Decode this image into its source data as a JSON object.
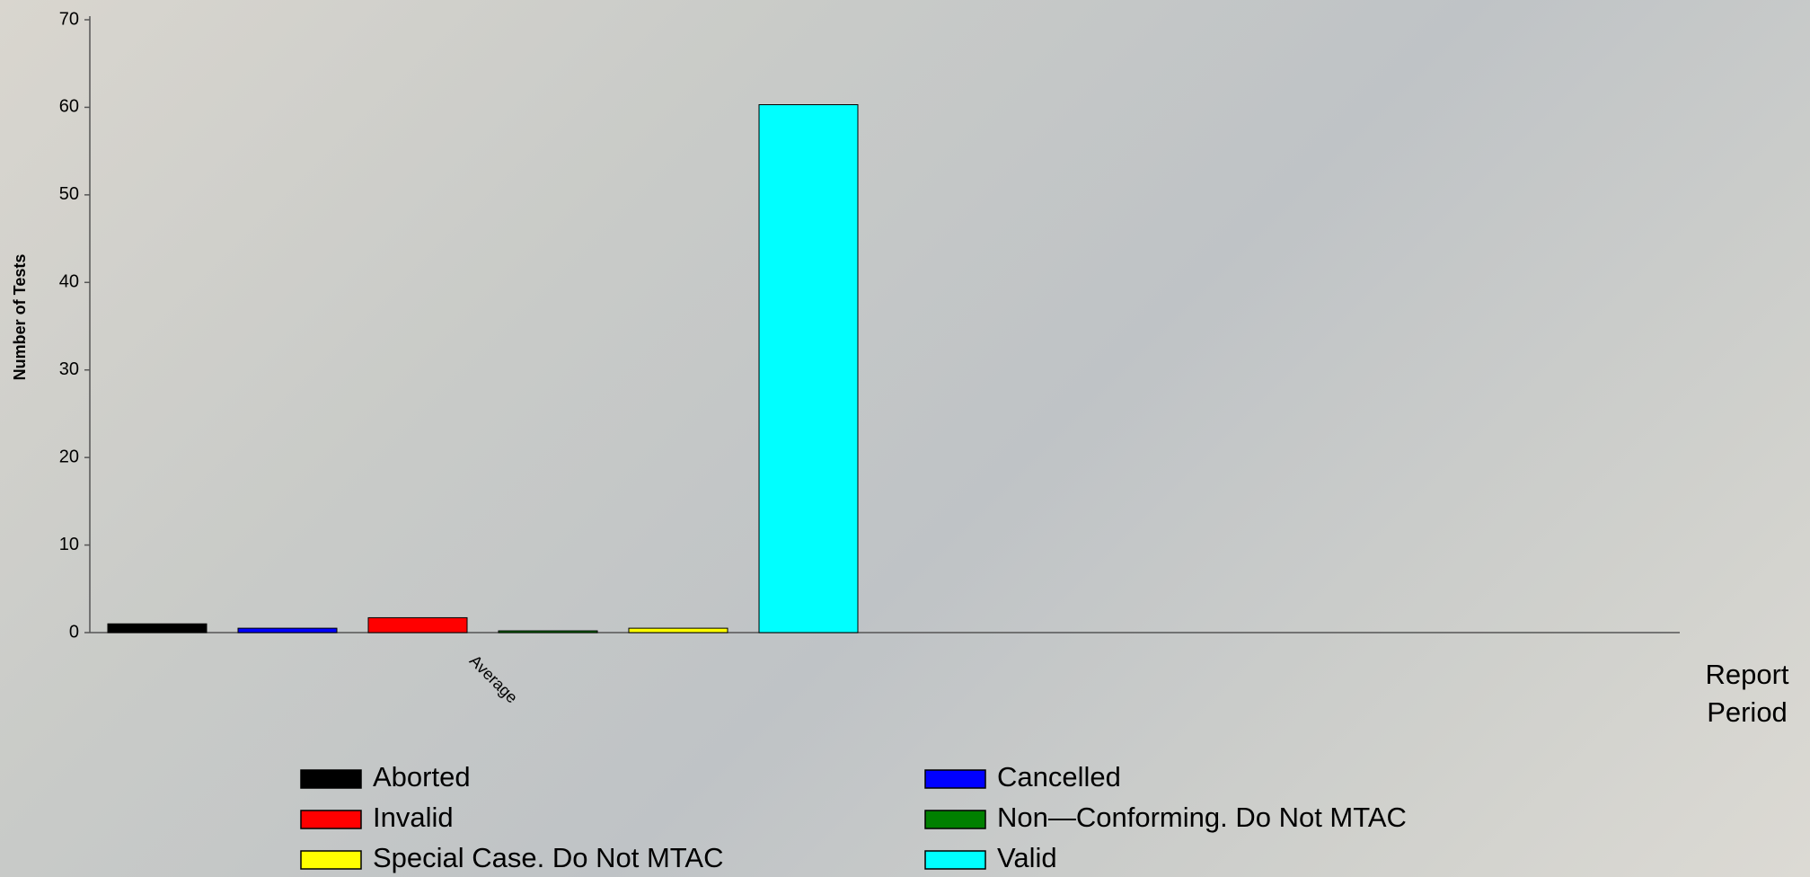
{
  "chart_data": {
    "type": "bar",
    "y_label": "Number of Tests",
    "x_label": "Report Period",
    "categories": [
      "Average"
    ],
    "series": [
      {
        "name": "Aborted",
        "color": "#000000",
        "values": [
          1
        ]
      },
      {
        "name": "Cancelled",
        "color": "#0000ff",
        "values": [
          0.5
        ]
      },
      {
        "name": "Invalid",
        "color": "#ff0000",
        "values": [
          1.7
        ]
      },
      {
        "name": "Non—Conforming. Do Not MTAC",
        "color": "#008000",
        "values": [
          0.2
        ]
      },
      {
        "name": "Special Case. Do Not MTAC",
        "color": "#ffff00",
        "values": [
          0.5
        ]
      },
      {
        "name": "Valid",
        "color": "#00ffff",
        "values": [
          60.3
        ]
      }
    ],
    "ylim": [
      0,
      70
    ],
    "yticks": [
      0,
      10,
      20,
      30,
      40,
      50,
      60,
      70
    ]
  }
}
